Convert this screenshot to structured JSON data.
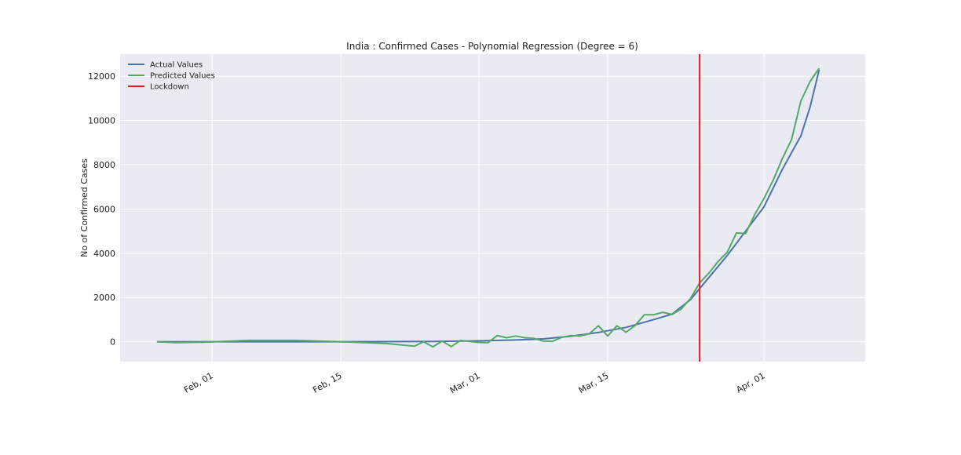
{
  "chart_data": {
    "type": "line",
    "title": "India : Confirmed Cases - Polynomial Regression (Degree = 6)",
    "xlabel": "",
    "ylabel": "No of Confirmed Cases",
    "xlim": [
      "2020-01-22",
      "2020-04-12"
    ],
    "ylim": [
      -900,
      13000
    ],
    "yticks": [
      0,
      2000,
      4000,
      6000,
      8000,
      10000,
      12000
    ],
    "yticklabels": [
      "0",
      "2000",
      "4000",
      "6000",
      "8000",
      "10000",
      "12000"
    ],
    "xticks": [
      "2020-02-01",
      "2020-02-15",
      "2020-03-01",
      "2020-03-15",
      "2020-04-01"
    ],
    "xticklabels": [
      "Feb, 01",
      "Feb, 15",
      "Mar, 01",
      "Mar, 15",
      "Apr, 01"
    ],
    "grid": true,
    "legend": "upper-left",
    "series": [
      {
        "name": "Actual Values",
        "color": "#4c72b0",
        "x": [
          "2020-01-26",
          "2020-02-05",
          "2020-02-15",
          "2020-02-25",
          "2020-03-01",
          "2020-03-05",
          "2020-03-08",
          "2020-03-11",
          "2020-03-14",
          "2020-03-17",
          "2020-03-20",
          "2020-03-22",
          "2020-03-24",
          "2020-03-26",
          "2020-03-28",
          "2020-03-30",
          "2020-04-01",
          "2020-04-03",
          "2020-04-05",
          "2020-04-06",
          "2020-04-07"
        ],
        "values": [
          0,
          0,
          0,
          10,
          40,
          80,
          130,
          250,
          420,
          650,
          1000,
          1250,
          1900,
          2900,
          3900,
          5000,
          6100,
          7800,
          9300,
          10600,
          12300
        ]
      },
      {
        "name": "Predicted Values",
        "color": "#55a868",
        "x": [
          "2020-01-26",
          "2020-01-28",
          "2020-01-31",
          "2020-02-05",
          "2020-02-10",
          "2020-02-15",
          "2020-02-20",
          "2020-02-23",
          "2020-02-24",
          "2020-02-25",
          "2020-02-26",
          "2020-02-27",
          "2020-02-28",
          "2020-02-29",
          "2020-03-01",
          "2020-03-02",
          "2020-03-03",
          "2020-03-04",
          "2020-03-05",
          "2020-03-06",
          "2020-03-07",
          "2020-03-08",
          "2020-03-09",
          "2020-03-10",
          "2020-03-11",
          "2020-03-12",
          "2020-03-13",
          "2020-03-14",
          "2020-03-15",
          "2020-03-16",
          "2020-03-17",
          "2020-03-18",
          "2020-03-19",
          "2020-03-20",
          "2020-03-21",
          "2020-03-22",
          "2020-03-23",
          "2020-03-24",
          "2020-03-25",
          "2020-03-26",
          "2020-03-27",
          "2020-03-28",
          "2020-03-29",
          "2020-03-30",
          "2020-03-31",
          "2020-04-01",
          "2020-04-02",
          "2020-04-03",
          "2020-04-04",
          "2020-04-05",
          "2020-04-06",
          "2020-04-07"
        ],
        "values": [
          0,
          -40,
          -20,
          60,
          60,
          0,
          -80,
          -200,
          0,
          -230,
          30,
          -220,
          60,
          10,
          -30,
          -40,
          280,
          180,
          260,
          180,
          150,
          30,
          20,
          200,
          280,
          260,
          360,
          720,
          260,
          720,
          430,
          740,
          1220,
          1220,
          1330,
          1230,
          1480,
          1950,
          2660,
          3100,
          3620,
          4050,
          4920,
          4890,
          5760,
          6480,
          7300,
          8290,
          9150,
          10880,
          11760,
          12360
        ]
      },
      {
        "name": "Lockdown",
        "color": "#e41a1c",
        "type": "vline",
        "x": "2020-03-25"
      }
    ]
  }
}
